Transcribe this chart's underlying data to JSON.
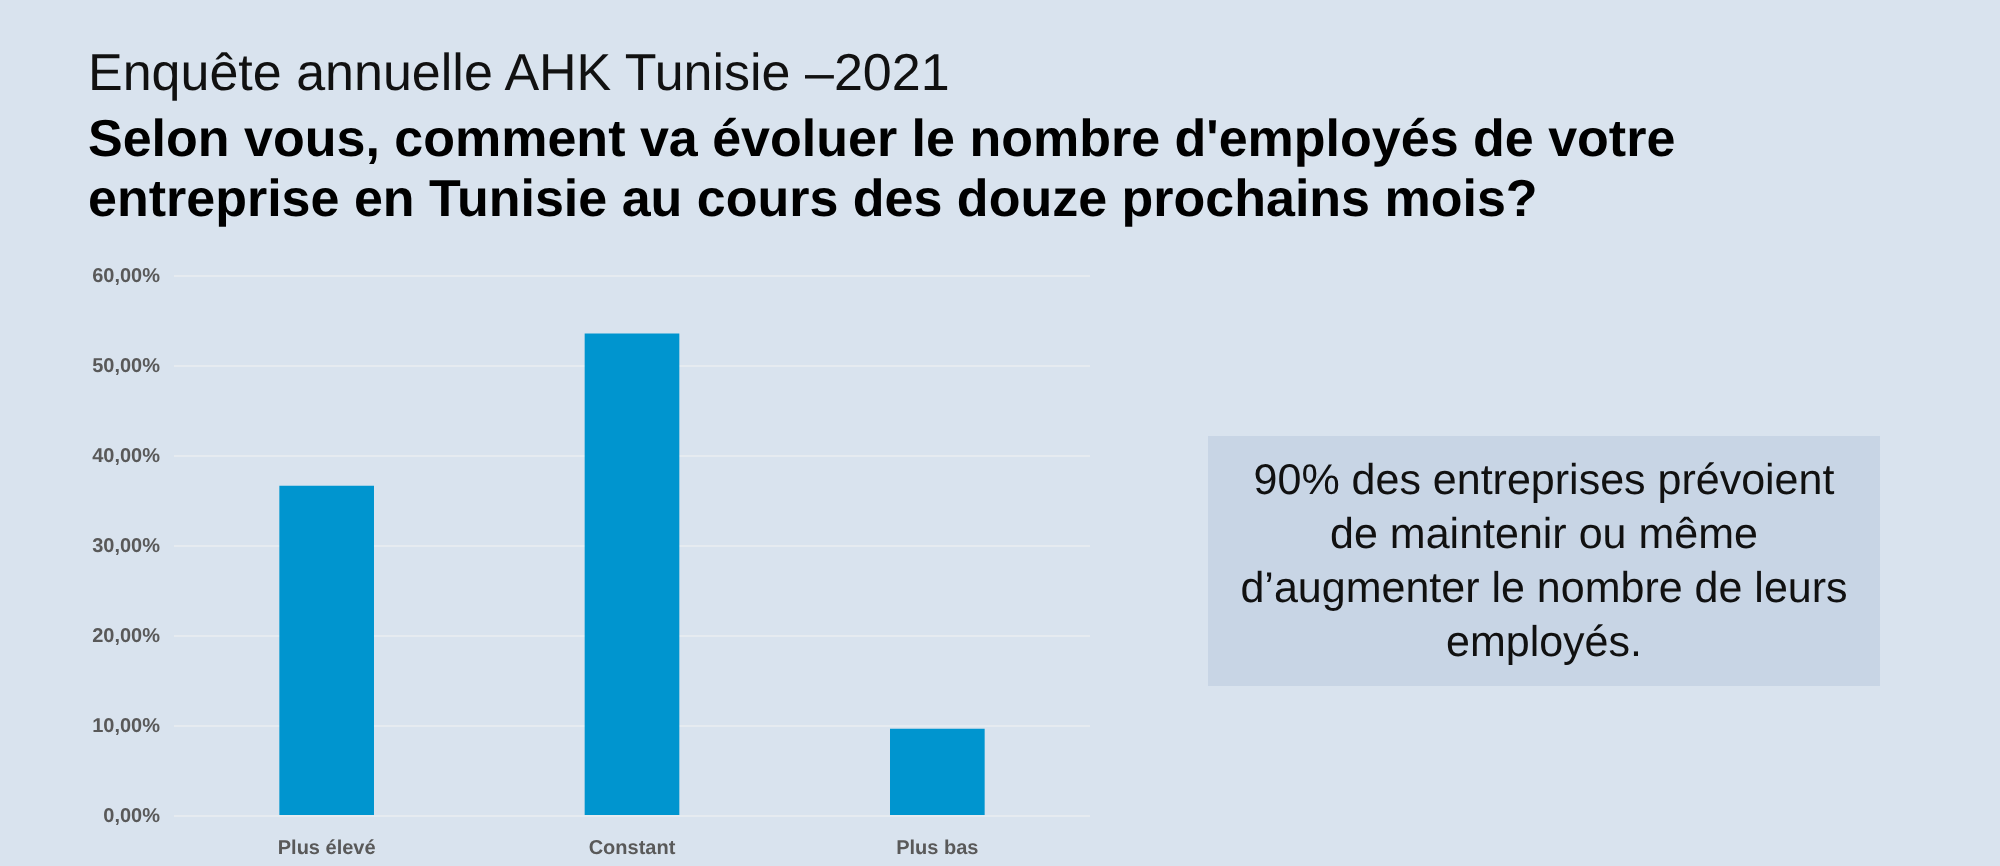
{
  "chart_data": {
    "type": "bar",
    "title": "Enquête annuelle AHK Tunisie –2021",
    "subtitle": "Selon vous, comment va évoluer le nombre d'employés de votre entreprise en Tunisie au cours des douze prochains mois?",
    "categories": [
      "Plus élevé",
      "Constant",
      "Plus bas"
    ],
    "values": [
      36.7,
      53.6,
      9.7
    ],
    "color": "#0095cf",
    "ylim": [
      0,
      60
    ],
    "yticks": [
      {
        "value": 0,
        "label": "0,00%"
      },
      {
        "value": 10,
        "label": "10,00%"
      },
      {
        "value": 20,
        "label": "20,00%"
      },
      {
        "value": 30,
        "label": "30,00%"
      },
      {
        "value": 40,
        "label": "40,00%"
      },
      {
        "value": 50,
        "label": "50,00%"
      },
      {
        "value": 60,
        "label": "60,00%"
      }
    ],
    "grid": "y",
    "annotations": [
      "90% des entreprises prévoient de maintenir ou même d’augmenter le nombre de leurs employés."
    ]
  }
}
